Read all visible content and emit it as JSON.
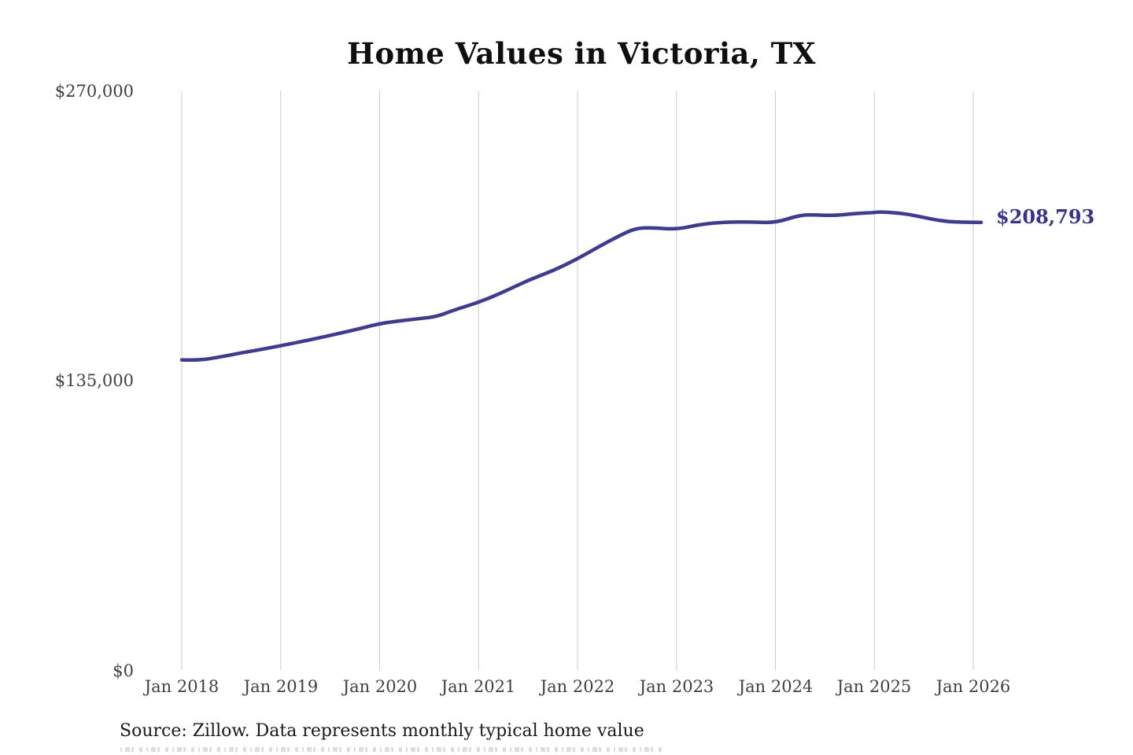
{
  "page": {
    "background_color": "#ffffff"
  },
  "chart": {
    "title": "Home Values in Victoria, TX",
    "last_value_label": "$208,793",
    "source": "Source: Zillow. Data represents monthly typical home value",
    "colors": {
      "line": "#3e3a96",
      "annotation_text": "#363293",
      "gridline": "#cbcbcb",
      "axis_text": "#404040",
      "title_text": "#0f0f0f"
    }
  },
  "chart_data": {
    "type": "line",
    "title": "Home Values in Victoria, TX",
    "xlabel": "",
    "ylabel": "",
    "x_tick_labels": [
      "Jan 2018",
      "Jan 2019",
      "Jan 2020",
      "Jan 2021",
      "Jan 2022",
      "Jan 2023",
      "Jan 2024",
      "Jan 2025",
      "Jan 2026"
    ],
    "y_tick_labels": [
      "$0",
      "$135,000",
      "$270,000"
    ],
    "ylim": [
      0,
      270000
    ],
    "grid": "vertical-only",
    "legend": "none",
    "annotation": {
      "text": "$208,793",
      "position": "end-of-line"
    },
    "series": [
      {
        "name": "Monthly typical home value (USD)",
        "x_unit": "decimal-year",
        "points": [
          [
            2018.0,
            144700
          ],
          [
            2018.17,
            144400
          ],
          [
            2018.42,
            146300
          ],
          [
            2018.58,
            147800
          ],
          [
            2018.75,
            149100
          ],
          [
            2019.0,
            151300
          ],
          [
            2019.25,
            153600
          ],
          [
            2019.5,
            156100
          ],
          [
            2019.75,
            158700
          ],
          [
            2020.0,
            161600
          ],
          [
            2020.17,
            162700
          ],
          [
            2020.42,
            164000
          ],
          [
            2020.58,
            164900
          ],
          [
            2020.75,
            167900
          ],
          [
            2021.0,
            171500
          ],
          [
            2021.25,
            176300
          ],
          [
            2021.5,
            181800
          ],
          [
            2021.75,
            186200
          ],
          [
            2022.0,
            191800
          ],
          [
            2022.25,
            198400
          ],
          [
            2022.42,
            202500
          ],
          [
            2022.58,
            206000
          ],
          [
            2022.75,
            206400
          ],
          [
            2023.0,
            205500
          ],
          [
            2023.25,
            208000
          ],
          [
            2023.5,
            209000
          ],
          [
            2023.75,
            209000
          ],
          [
            2024.0,
            208600
          ],
          [
            2024.25,
            212300
          ],
          [
            2024.42,
            212300
          ],
          [
            2024.58,
            212000
          ],
          [
            2024.83,
            213000
          ],
          [
            2025.0,
            213400
          ],
          [
            2025.08,
            213800
          ],
          [
            2025.33,
            212800
          ],
          [
            2025.58,
            210300
          ],
          [
            2025.75,
            209100
          ],
          [
            2025.92,
            208900
          ],
          [
            2026.0,
            208900
          ],
          [
            2026.08,
            208793
          ]
        ]
      }
    ]
  }
}
